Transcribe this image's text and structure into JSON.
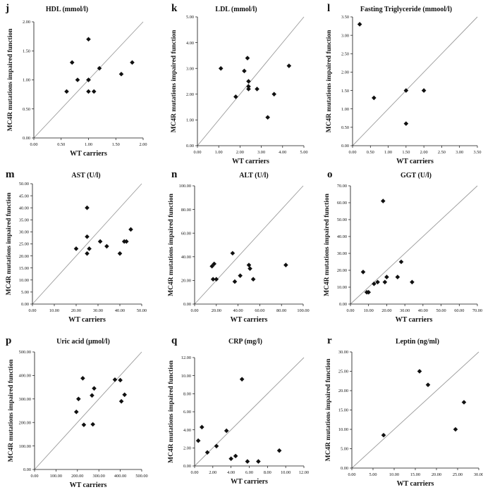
{
  "figure": {
    "y_axis_label": "MC4R mutations impaired function",
    "x_axis_label": "WT carriers"
  },
  "chart_data": [
    {
      "letter": "j",
      "title": "HDL (mmol/l)",
      "type": "scatter",
      "xlim": [
        0,
        2
      ],
      "ylim": [
        0,
        2
      ],
      "xticks": [
        "0.00",
        "0.50",
        "1.00",
        "1.50",
        "2.00"
      ],
      "yticks": [
        "0.00",
        "0.50",
        "1.00",
        "1.50",
        "2.00"
      ],
      "x": [
        0.6,
        0.7,
        0.8,
        1.0,
        1.0,
        1.0,
        1.0,
        1.1,
        1.2,
        1.6,
        1.8
      ],
      "y": [
        0.8,
        1.3,
        1.0,
        1.7,
        1.0,
        1.0,
        0.8,
        0.8,
        1.2,
        1.1,
        1.3
      ]
    },
    {
      "letter": "k",
      "title": "LDL (mmol/l)",
      "type": "scatter",
      "xlim": [
        0,
        5
      ],
      "ylim": [
        0,
        5
      ],
      "xticks": [
        "0.00",
        "1.00",
        "2.00",
        "3.00",
        "4.00",
        "5.00"
      ],
      "yticks": [
        "0.00",
        "1.00",
        "2.00",
        "3.00",
        "4.00",
        "5.00"
      ],
      "x": [
        1.1,
        1.8,
        2.2,
        2.35,
        2.4,
        2.4,
        2.4,
        2.8,
        3.3,
        3.6,
        4.3
      ],
      "y": [
        3.0,
        1.9,
        2.9,
        3.4,
        2.5,
        2.3,
        2.2,
        2.2,
        1.1,
        2.0,
        3.1
      ]
    },
    {
      "letter": "l",
      "title": "Fasting Triglyceride (mmool/l)",
      "type": "scatter",
      "xlim": [
        0,
        3.5
      ],
      "ylim": [
        0,
        3.5
      ],
      "xticks": [
        "0.00",
        "0.50",
        "1.00",
        "1.50",
        "2.00",
        "2.50",
        "3.00",
        "3.50"
      ],
      "yticks": [
        "0.00",
        "0.50",
        "1.00",
        "1.50",
        "2.00",
        "2.50",
        "3.00",
        "3.50"
      ],
      "x": [
        0.2,
        0.6,
        1.5,
        1.5,
        2.0
      ],
      "y": [
        3.3,
        1.3,
        1.5,
        0.6,
        1.5
      ]
    },
    {
      "letter": "m",
      "title": "AST (U/l)",
      "type": "scatter",
      "xlim": [
        0,
        50
      ],
      "ylim": [
        0,
        50
      ],
      "xticks": [
        "0.00",
        "10.00",
        "20.00",
        "30.00",
        "40.00",
        "50.00"
      ],
      "yticks": [
        "0.00",
        "5.00",
        "10.00",
        "15.00",
        "20.00",
        "25.00",
        "30.00",
        "35.00",
        "40.00",
        "45.00",
        "50.00"
      ],
      "x": [
        20,
        25,
        25,
        25,
        26,
        31,
        34,
        40,
        42,
        43,
        45
      ],
      "y": [
        23,
        40,
        28,
        21,
        23,
        26,
        24,
        21,
        26,
        26,
        31
      ]
    },
    {
      "letter": "n",
      "title": "ALT (U/l)",
      "type": "scatter",
      "xlim": [
        0,
        100
      ],
      "ylim": [
        0,
        100
      ],
      "xticks": [
        "0.00",
        "20.00",
        "40.00",
        "60.00",
        "80.00",
        "100.00"
      ],
      "yticks": [
        "0.00",
        "20.00",
        "40.00",
        "60.00",
        "80.00",
        "100.00"
      ],
      "x": [
        16,
        17,
        18,
        20,
        35,
        37,
        42,
        50,
        51,
        54,
        84
      ],
      "y": [
        32,
        21,
        34,
        21,
        43,
        19,
        24,
        33,
        30,
        21,
        33
      ]
    },
    {
      "letter": "o",
      "title": "GGT (U/l)",
      "type": "scatter",
      "xlim": [
        0,
        70
      ],
      "ylim": [
        0,
        70
      ],
      "xticks": [
        "0.00",
        "10.00",
        "20.00",
        "30.00",
        "40.00",
        "50.00",
        "60.00",
        "70.00"
      ],
      "yticks": [
        "0.00",
        "10.00",
        "20.00",
        "30.00",
        "40.00",
        "50.00",
        "60.00",
        "70.00"
      ],
      "x": [
        7,
        9,
        10,
        13,
        15,
        18,
        19,
        20,
        26,
        28,
        34
      ],
      "y": [
        19,
        7,
        7,
        12,
        13,
        61,
        13,
        16,
        16,
        25,
        13
      ]
    },
    {
      "letter": "p",
      "title": "Uric acid (µmol/l)",
      "type": "scatter",
      "xlim": [
        0,
        500
      ],
      "ylim": [
        0,
        500
      ],
      "xticks": [
        "0.00",
        "100.00",
        "200.00",
        "300.00",
        "400.00",
        "500.00"
      ],
      "yticks": [
        "0.00",
        "100.00",
        "200.00",
        "300.00",
        "400.00",
        "500.00"
      ],
      "x": [
        195,
        205,
        225,
        230,
        268,
        272,
        278,
        375,
        400,
        405,
        420
      ],
      "y": [
        245,
        300,
        388,
        190,
        315,
        192,
        345,
        382,
        380,
        290,
        318
      ]
    },
    {
      "letter": "q",
      "title": "CRP (mg/l)",
      "type": "scatter",
      "xlim": [
        0,
        12
      ],
      "ylim": [
        0,
        12
      ],
      "xticks": [
        "0.00",
        "2.00",
        "4.00",
        "6.00",
        "8.00",
        "10.00",
        "12.00"
      ],
      "yticks": [
        "0.00",
        "2.00",
        "4.00",
        "6.00",
        "8.00",
        "10.00",
        "12.00"
      ],
      "x": [
        0.4,
        0.8,
        1.4,
        2.4,
        3.5,
        4.0,
        4.5,
        5.2,
        5.8,
        7.0,
        9.3
      ],
      "y": [
        2.8,
        4.3,
        1.5,
        2.2,
        3.9,
        0.8,
        1.1,
        9.6,
        0.5,
        0.5,
        1.7
      ]
    },
    {
      "letter": "r",
      "title": "Leptin (ng/ml)",
      "type": "scatter",
      "xlim": [
        0,
        30
      ],
      "ylim": [
        0,
        30
      ],
      "xticks": [
        "0.00",
        "5.00",
        "10.00",
        "15.00",
        "20.00",
        "25.00",
        "30.00"
      ],
      "yticks": [
        "0.00",
        "5.00",
        "10.00",
        "15.00",
        "20.00",
        "25.00",
        "30.00"
      ],
      "x": [
        7.5,
        16,
        18,
        24.5,
        26.5
      ],
      "y": [
        8.5,
        25,
        21.5,
        10,
        17
      ]
    }
  ]
}
